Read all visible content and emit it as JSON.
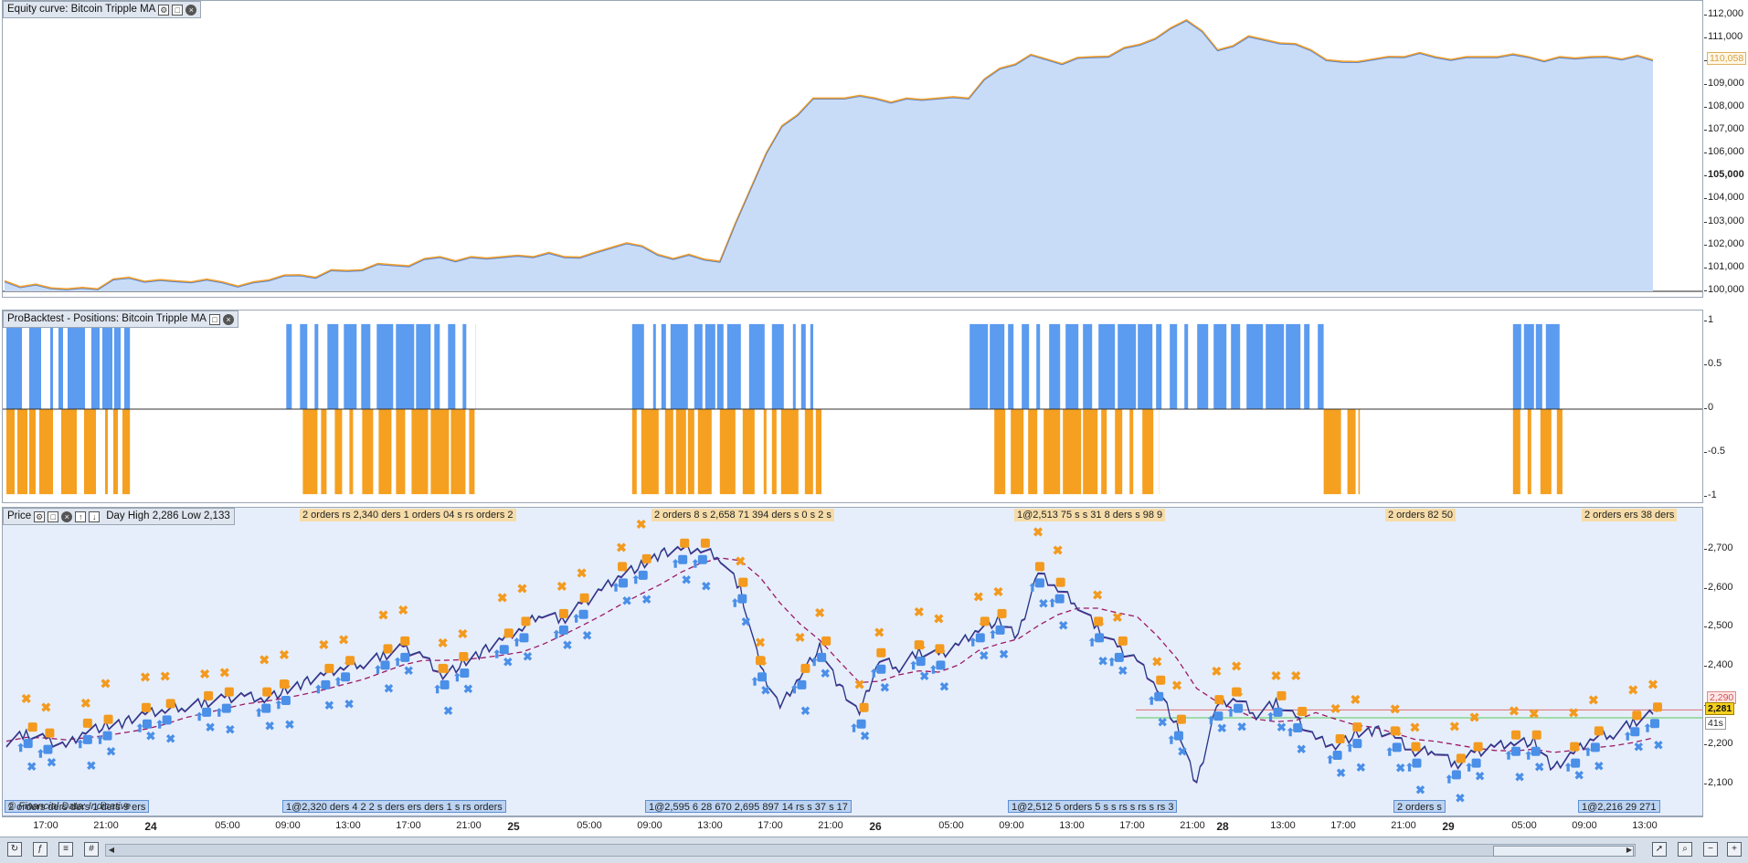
{
  "equity_panel": {
    "title": "Equity curve: Bitcoin Tripple MA",
    "last_value_tag": "110,058"
  },
  "positions_panel": {
    "title": "ProBacktest - Positions: Bitcoin Tripple MA"
  },
  "price_panel": {
    "title": "Price",
    "ohlc_text": "Day High 2,286 Low 2,133",
    "last_price_tag": "2,281",
    "red_level_tag": "2,290",
    "timer_tag": "41s",
    "watermark": "© Financial Data: Indicative",
    "top_order_tags": [
      "2 orders rs 2,340 ders 1 orders 04 s rs orders 2",
      "2 orders 8 s 2,658 71 394 ders s 0 s 2 s",
      "1@2,513 75 s s 31 8 ders s 98 9",
      "2 orders 82 50",
      "2 orders ers 38 ders"
    ],
    "bottom_order_tags": [
      "2 orders ders ders 1 ders 9 ers",
      "1@2,320 ders 4 2 2 s ders ers ders 1 s rs orders",
      "1@2,595 6 28 670 2,695 897 14 rs s 37 s 17",
      "1@2,512 5 orders 5 s s rs s rs s rs 3",
      "2 orders s",
      "1@2,216 29 271"
    ]
  },
  "time_axis": {
    "labels": [
      {
        "text": "17:00",
        "bold": false
      },
      {
        "text": "21:00",
        "bold": false
      },
      {
        "text": "24",
        "bold": true
      },
      {
        "text": "05:00",
        "bold": false
      },
      {
        "text": "09:00",
        "bold": false
      },
      {
        "text": "13:00",
        "bold": false
      },
      {
        "text": "17:00",
        "bold": false
      },
      {
        "text": "21:00",
        "bold": false
      },
      {
        "text": "25",
        "bold": true
      },
      {
        "text": "05:00",
        "bold": false
      },
      {
        "text": "09:00",
        "bold": false
      },
      {
        "text": "13:00",
        "bold": false
      },
      {
        "text": "17:00",
        "bold": false
      },
      {
        "text": "21:00",
        "bold": false
      },
      {
        "text": "26",
        "bold": true
      },
      {
        "text": "05:00",
        "bold": false
      },
      {
        "text": "09:00",
        "bold": false
      },
      {
        "text": "13:00",
        "bold": false
      },
      {
        "text": "17:00",
        "bold": false
      },
      {
        "text": "21:00",
        "bold": false
      },
      {
        "text": "28",
        "bold": true
      },
      {
        "text": "13:00",
        "bold": false
      },
      {
        "text": "17:00",
        "bold": false
      },
      {
        "text": "21:00",
        "bold": false
      },
      {
        "text": "29",
        "bold": true
      },
      {
        "text": "05:00",
        "bold": false
      },
      {
        "text": "09:00",
        "bold": false
      },
      {
        "text": "13:00",
        "bold": false
      }
    ]
  },
  "toolbar": {
    "icons": [
      "refresh-icon",
      "indicators-icon",
      "list-icon",
      "grid-icon",
      "cursor-icon",
      "zoom-area-icon",
      "zoom-out-icon",
      "zoom-in-icon"
    ]
  },
  "colors": {
    "equity_fill": "#c9dcf7",
    "equity_line": "#f0a030",
    "long_bar": "#5b9bf0",
    "short_bar": "#f5a020",
    "price_line": "#1b3f8a",
    "ma_dash": "#9b1a66",
    "buy_marker": "#4a8fe8",
    "sell_marker": "#f39a1f"
  },
  "chart_data": [
    {
      "type": "area",
      "title": "Equity curve: Bitcoin Tripple MA",
      "ylim": [
        100000,
        112000
      ],
      "y_ticks": [
        100000,
        101000,
        102000,
        103000,
        104000,
        105000,
        106000,
        107000,
        108000,
        109000,
        110000,
        111000,
        112000
      ],
      "y_tick_labels": [
        "100,000",
        "101,000",
        "102,000",
        "103,000",
        "104,000",
        "105,000",
        "106,000",
        "107,000",
        "108,000",
        "109,000",
        "110,000",
        "111,000",
        "112,000"
      ],
      "series": [
        {
          "values": [
            100450,
            100300,
            100100,
            100100,
            100600,
            100500,
            100400,
            100400,
            100400,
            100700,
            100600,
            100900,
            101200,
            101100,
            101500,
            101500,
            101500,
            101500,
            101500,
            101700,
            102100,
            101600,
            101600,
            101300,
            104500,
            107200,
            108400,
            108400,
            108400,
            108400,
            108400,
            108400,
            109700,
            110300,
            109900,
            110200,
            110600,
            111000,
            111800,
            110500,
            111100,
            110800,
            110500,
            110000,
            110100,
            110200,
            110200,
            110200,
            110200,
            110200,
            110200,
            110200,
            110100,
            110060
          ]
        }
      ]
    },
    {
      "type": "bar",
      "title": "ProBacktest - Positions: Bitcoin Tripple MA",
      "ylim": [
        -1,
        1
      ],
      "y_ticks": [
        1,
        0.5,
        0,
        -0.5,
        -1
      ],
      "y_tick_labels": [
        "1",
        "0.5",
        "0",
        "-0.5",
        "-1"
      ],
      "long_intervals": [
        [
          0.0,
          0.075
        ],
        [
          0.17,
          0.285
        ],
        [
          0.38,
          0.49
        ],
        [
          0.585,
          0.8
        ],
        [
          0.915,
          0.945
        ]
      ],
      "short_intervals": [
        [
          0.0,
          0.075
        ],
        [
          0.18,
          0.285
        ],
        [
          0.38,
          0.495
        ],
        [
          0.6,
          0.7
        ],
        [
          0.8,
          0.822
        ],
        [
          0.915,
          0.945
        ]
      ]
    },
    {
      "type": "line",
      "title": "Price",
      "ylim": [
        2060,
        2760
      ],
      "y_ticks": [
        2100,
        2200,
        2300,
        2400,
        2500,
        2600,
        2700
      ],
      "y_tick_labels": [
        "2,100",
        "2,200",
        "2,300",
        "2,400",
        "2,500",
        "2,600",
        "2,700"
      ],
      "series": [
        {
          "values": [
            2210,
            2230,
            2215,
            2200,
            2240,
            2250,
            2260,
            2280,
            2290,
            2300,
            2310,
            2320,
            2330,
            2320,
            2340,
            2360,
            2380,
            2400,
            2410,
            2430,
            2450,
            2430,
            2380,
            2410,
            2440,
            2470,
            2500,
            2540,
            2520,
            2560,
            2600,
            2640,
            2660,
            2690,
            2700,
            2700,
            2680,
            2600,
            2400,
            2300,
            2380,
            2450,
            2350,
            2280,
            2420,
            2400,
            2440,
            2430,
            2460,
            2500,
            2520,
            2480,
            2640,
            2600,
            2560,
            2500,
            2450,
            2420,
            2350,
            2250,
            2100,
            2300,
            2320,
            2280,
            2310,
            2270,
            2220,
            2200,
            2230,
            2240,
            2220,
            2180,
            2190,
            2150,
            2180,
            2200,
            2210,
            2210,
            2140,
            2180,
            2220,
            2230,
            2260,
            2281
          ]
        }
      ]
    }
  ]
}
